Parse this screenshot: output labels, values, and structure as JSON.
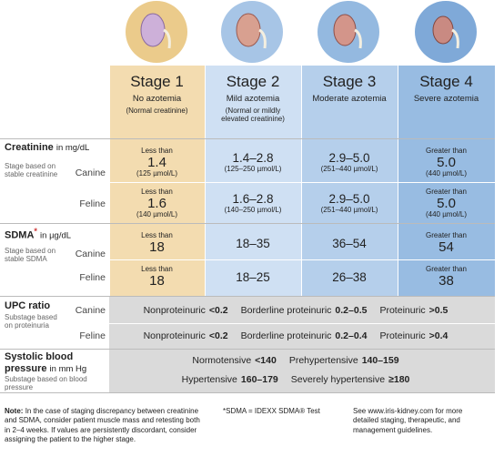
{
  "stages": [
    {
      "name": "Stage 1",
      "description": "No azotemia",
      "note": "(Normal creatinine)"
    },
    {
      "name": "Stage 2",
      "description": "Mild azotemia",
      "note": "(Normal or mildly elevated creatinine)"
    },
    {
      "name": "Stage 3",
      "description": "Moderate azotemia"
    },
    {
      "name": "Stage 4",
      "description": "Severe azotemia"
    }
  ],
  "creatinine": {
    "title": "Creatinine",
    "unit": "in mg/dL",
    "stage_label": "Stage based on stable creatinine",
    "rows": [
      {
        "species": "Canine",
        "cells": [
          {
            "prefix": "Less than",
            "value": "1.4",
            "range": "(125 µmol/L)"
          },
          {
            "value": "1.4–2.8",
            "range": "(125–250 µmol/L)"
          },
          {
            "value": "2.9–5.0",
            "range": "(251–440 µmol/L)"
          },
          {
            "prefix": "Greater than",
            "value": "5.0",
            "range": "(440 µmol/L)"
          }
        ]
      },
      {
        "species": "Feline",
        "cells": [
          {
            "prefix": "Less than",
            "value": "1.6",
            "range": "(140 µmol/L)"
          },
          {
            "value": "1.6–2.8",
            "range": "(140–250 µmol/L)"
          },
          {
            "value": "2.9–5.0",
            "range": "(251–440 µmol/L)"
          },
          {
            "prefix": "Greater than",
            "value": "5.0",
            "range": "(440 µmol/L)"
          }
        ]
      }
    ]
  },
  "sdma": {
    "title": "SDMA",
    "marker": "*",
    "unit": "in µg/dL",
    "stage_label": "Stage based on stable SDMA",
    "rows": [
      {
        "species": "Canine",
        "cells": [
          {
            "prefix": "Less than",
            "value": "18"
          },
          {
            "value": "18–35"
          },
          {
            "value": "36–54"
          },
          {
            "prefix": "Greater than",
            "value": "54"
          }
        ]
      },
      {
        "species": "Feline",
        "cells": [
          {
            "prefix": "Less than",
            "value": "18"
          },
          {
            "value": "18–25"
          },
          {
            "value": "26–38"
          },
          {
            "prefix": "Greater than",
            "value": "38"
          }
        ]
      }
    ]
  },
  "upc": {
    "title": "UPC ratio",
    "stage_label": "Substage based on proteinuria",
    "rows": [
      {
        "species": "Canine",
        "items": [
          {
            "label": "Nonproteinuric",
            "value": "<0.2"
          },
          {
            "label": "Borderline proteinuric",
            "value": "0.2–0.5"
          },
          {
            "label": "Proteinuric",
            "value": ">0.5"
          }
        ]
      },
      {
        "species": "Feline",
        "items": [
          {
            "label": "Nonproteinuric",
            "value": "<0.2"
          },
          {
            "label": "Borderline proteinuric",
            "value": "0.2–0.4"
          },
          {
            "label": "Proteinuric",
            "value": ">0.4"
          }
        ]
      }
    ]
  },
  "blood_pressure": {
    "title": "Systolic blood pressure",
    "unit": "in mm Hg",
    "stage_label": "Substage based on blood pressure",
    "lines": [
      [
        {
          "label": "Normotensive",
          "value": "<140"
        },
        {
          "label": "Prehypertensive",
          "value": "140–159"
        }
      ],
      [
        {
          "label": "Hypertensive",
          "value": "160–179"
        },
        {
          "label": "Severely hypertensive",
          "value": "≥180"
        }
      ]
    ]
  },
  "footer": {
    "note_label": "Note:",
    "note": "In the case of staging discrepancy between creatinine and SDMA, consider patient muscle mass and retesting both in 2–4 weeks. If values are persistently discordant, consider assigning the patient to the higher stage.",
    "footnote": "*SDMA = IDEXX SDMA® Test",
    "reference": "See www.iris-kidney.com for more detailed staging, therapeutic, and management guidelines."
  }
}
